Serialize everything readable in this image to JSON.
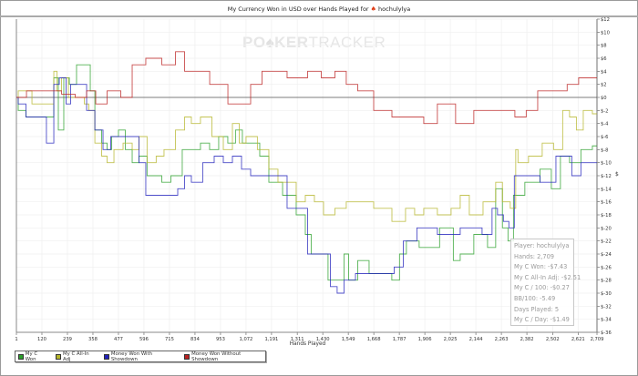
{
  "chart_data": {
    "type": "line",
    "title": "My Currency Won in USD over Hands Played for",
    "player": "hochulylya",
    "watermark": "POKERTRACKER",
    "xlabel": "Hands Played",
    "ylabel": "",
    "xlim": [
      1,
      2709
    ],
    "ylim": [
      -36,
      12
    ],
    "x_ticks": [
      "1",
      "120",
      "239",
      "358",
      "477",
      "596",
      "715",
      "834",
      "953",
      "1,072",
      "1,191",
      "1,311",
      "1,430",
      "1,549",
      "1,668",
      "1,787",
      "1,906",
      "2,025",
      "2,144",
      "2,263",
      "2,382",
      "2,502",
      "2,621",
      "2,709"
    ],
    "x_tick_values": [
      1,
      120,
      239,
      358,
      477,
      596,
      715,
      834,
      953,
      1072,
      1191,
      1311,
      1430,
      1549,
      1668,
      1787,
      1906,
      2025,
      2144,
      2263,
      2382,
      2502,
      2621,
      2709
    ],
    "y_ticks": [
      12,
      10,
      8,
      6,
      4,
      2,
      0,
      -2,
      -4,
      -6,
      -8,
      -10,
      -12,
      -14,
      -16,
      -18,
      -20,
      -22,
      -24,
      -26,
      -28,
      -30,
      -32,
      -34,
      -36
    ],
    "y_axis_side": "right",
    "grid": true,
    "legend": "bottom-left",
    "series": [
      {
        "name": "My C Won",
        "color": "#2ca02c",
        "points": [
          [
            1,
            0
          ],
          [
            18,
            -2
          ],
          [
            73,
            -3
          ],
          [
            171,
            -3
          ],
          [
            180,
            3
          ],
          [
            213,
            -5
          ],
          [
            231,
            3
          ],
          [
            265,
            2
          ],
          [
            298,
            5
          ],
          [
            341,
            5
          ],
          [
            350,
            1
          ],
          [
            384,
            -5
          ],
          [
            413,
            -7
          ],
          [
            435,
            -8
          ],
          [
            456,
            -6
          ],
          [
            498,
            -5
          ],
          [
            520,
            -8
          ],
          [
            562,
            -10
          ],
          [
            583,
            -9
          ],
          [
            638,
            -12
          ],
          [
            668,
            -12
          ],
          [
            690,
            -13
          ],
          [
            753,
            -12
          ],
          [
            796,
            -8
          ],
          [
            838,
            -8
          ],
          [
            881,
            -7
          ],
          [
            923,
            -8
          ],
          [
            966,
            -6
          ],
          [
            1008,
            -7
          ],
          [
            1038,
            -5
          ],
          [
            1072,
            -7
          ],
          [
            1115,
            -7
          ],
          [
            1157,
            -9
          ],
          [
            1200,
            -13
          ],
          [
            1285,
            -15
          ],
          [
            1327,
            -18
          ],
          [
            1370,
            -21
          ],
          [
            1382,
            -24
          ],
          [
            1433,
            -24
          ],
          [
            1476,
            -28
          ],
          [
            1518,
            -28
          ],
          [
            1540,
            -24
          ],
          [
            1561,
            -28
          ],
          [
            1625,
            -25
          ],
          [
            1667,
            -27
          ],
          [
            1731,
            -27
          ],
          [
            1773,
            -28
          ],
          [
            1803,
            -24
          ],
          [
            1837,
            -22
          ],
          [
            1922,
            -23
          ],
          [
            2028,
            -20
          ],
          [
            2050,
            -25
          ],
          [
            2092,
            -24
          ],
          [
            2177,
            -21
          ],
          [
            2220,
            -23
          ],
          [
            2253,
            -14
          ],
          [
            2283,
            -20
          ],
          [
            2305,
            -22
          ],
          [
            2334,
            -15
          ],
          [
            2411,
            -13
          ],
          [
            2475,
            -11
          ],
          [
            2517,
            -14
          ],
          [
            2560,
            -9
          ],
          [
            2602,
            -10
          ],
          [
            2666,
            -8
          ],
          [
            2709,
            -7.43
          ]
        ]
      },
      {
        "name": "My C All-In Adj",
        "color": "#b5b52a",
        "points": [
          [
            1,
            0
          ],
          [
            18,
            1
          ],
          [
            52,
            1
          ],
          [
            95,
            -1
          ],
          [
            171,
            -1
          ],
          [
            180,
            4
          ],
          [
            201,
            1
          ],
          [
            222,
            3
          ],
          [
            265,
            0
          ],
          [
            307,
            0
          ],
          [
            328,
            -1
          ],
          [
            350,
            -2
          ],
          [
            384,
            -7
          ],
          [
            413,
            -9
          ],
          [
            435,
            -10
          ],
          [
            477,
            -8
          ],
          [
            520,
            -7
          ],
          [
            562,
            -8
          ],
          [
            583,
            -6
          ],
          [
            638,
            -10
          ],
          [
            668,
            -9
          ],
          [
            711,
            -8
          ],
          [
            775,
            -5
          ],
          [
            796,
            -3
          ],
          [
            838,
            -4
          ],
          [
            881,
            -3
          ],
          [
            945,
            -6
          ],
          [
            987,
            -8
          ],
          [
            1030,
            -4
          ],
          [
            1051,
            -7
          ],
          [
            1093,
            -6
          ],
          [
            1157,
            -8
          ],
          [
            1200,
            -11
          ],
          [
            1242,
            -13
          ],
          [
            1285,
            -13
          ],
          [
            1327,
            -16
          ],
          [
            1370,
            -15
          ],
          [
            1412,
            -16
          ],
          [
            1455,
            -18
          ],
          [
            1518,
            -17
          ],
          [
            1561,
            -16
          ],
          [
            1625,
            -16
          ],
          [
            1710,
            -17
          ],
          [
            1795,
            -19
          ],
          [
            1837,
            -17
          ],
          [
            1880,
            -18
          ],
          [
            1922,
            -17
          ],
          [
            2007,
            -18
          ],
          [
            2050,
            -17
          ],
          [
            2092,
            -15
          ],
          [
            2135,
            -18
          ],
          [
            2220,
            -16
          ],
          [
            2253,
            -13
          ],
          [
            2283,
            -16
          ],
          [
            2326,
            -17
          ],
          [
            2334,
            -8
          ],
          [
            2347,
            -10
          ],
          [
            2432,
            -9
          ],
          [
            2475,
            -7
          ],
          [
            2538,
            -8
          ],
          [
            2560,
            -2
          ],
          [
            2602,
            -3
          ],
          [
            2624,
            -5
          ],
          [
            2666,
            -2
          ],
          [
            2709,
            -2.51
          ]
        ]
      },
      {
        "name": "Money Won With Showdown",
        "color": "#2222bb",
        "points": [
          [
            1,
            0
          ],
          [
            18,
            -1
          ],
          [
            73,
            -3
          ],
          [
            137,
            -3
          ],
          [
            145,
            -7
          ],
          [
            171,
            -7
          ],
          [
            180,
            2
          ],
          [
            222,
            3
          ],
          [
            243,
            -1
          ],
          [
            265,
            2
          ],
          [
            307,
            2
          ],
          [
            350,
            -2
          ],
          [
            384,
            -5
          ],
          [
            426,
            -8
          ],
          [
            456,
            -6
          ],
          [
            562,
            -6
          ],
          [
            583,
            -10
          ],
          [
            626,
            -15
          ],
          [
            732,
            -15
          ],
          [
            775,
            -14
          ],
          [
            796,
            -12
          ],
          [
            838,
            -13
          ],
          [
            902,
            -10
          ],
          [
            945,
            -9
          ],
          [
            987,
            -10
          ],
          [
            1030,
            -9
          ],
          [
            1072,
            -11
          ],
          [
            1115,
            -12
          ],
          [
            1200,
            -12
          ],
          [
            1327,
            -17
          ],
          [
            1391,
            -24
          ],
          [
            1455,
            -24
          ],
          [
            1476,
            -29
          ],
          [
            1518,
            -30
          ],
          [
            1540,
            -28
          ],
          [
            1625,
            -27
          ],
          [
            1731,
            -27
          ],
          [
            1795,
            -26
          ],
          [
            1816,
            -22
          ],
          [
            1922,
            -20
          ],
          [
            2007,
            -21
          ],
          [
            2135,
            -20
          ],
          [
            2211,
            -21
          ],
          [
            2228,
            -17
          ],
          [
            2262,
            -18
          ],
          [
            2283,
            -19
          ],
          [
            2313,
            -20
          ],
          [
            2334,
            -12
          ],
          [
            2411,
            -12
          ],
          [
            2475,
            -13
          ],
          [
            2560,
            -9
          ],
          [
            2581,
            -9
          ],
          [
            2602,
            -12
          ],
          [
            2666,
            -10
          ],
          [
            2709,
            -10
          ]
        ]
      },
      {
        "name": "Money Won Without Showdown",
        "color": "#bb2222",
        "points": [
          [
            1,
            0
          ],
          [
            95,
            1
          ],
          [
            180,
            1
          ],
          [
            243,
            0.5
          ],
          [
            307,
            0
          ],
          [
            350,
            1
          ],
          [
            392,
            -1
          ],
          [
            456,
            1
          ],
          [
            520,
            0
          ],
          [
            562,
            5
          ],
          [
            647,
            6
          ],
          [
            711,
            5
          ],
          [
            775,
            7
          ],
          [
            796,
            4
          ],
          [
            860,
            4
          ],
          [
            945,
            2
          ],
          [
            1030,
            -1
          ],
          [
            1072,
            -1
          ],
          [
            1115,
            2
          ],
          [
            1178,
            4
          ],
          [
            1242,
            4
          ],
          [
            1285,
            3
          ],
          [
            1327,
            3
          ],
          [
            1391,
            4
          ],
          [
            1455,
            3
          ],
          [
            1518,
            4
          ],
          [
            1561,
            2
          ],
          [
            1625,
            1
          ],
          [
            1710,
            -2
          ],
          [
            1795,
            -3
          ],
          [
            1880,
            -3
          ],
          [
            1922,
            -4
          ],
          [
            2007,
            -1
          ],
          [
            2092,
            -4
          ],
          [
            2177,
            -2
          ],
          [
            2305,
            -2
          ],
          [
            2347,
            -3
          ],
          [
            2411,
            -2
          ],
          [
            2454,
            1
          ],
          [
            2538,
            1
          ],
          [
            2602,
            2
          ],
          [
            2645,
            3
          ],
          [
            2709,
            3
          ]
        ]
      }
    ]
  },
  "info_box": {
    "lines": [
      "Player: hochulylya",
      "Hands: 2,709",
      "My C Won: -$7.43",
      "My C All-In Adj: -$2.51",
      "My C / 100: -$0.27",
      "BB/100: -5.49",
      "Days Played: 5",
      "My C / Day: -$1.49"
    ]
  }
}
